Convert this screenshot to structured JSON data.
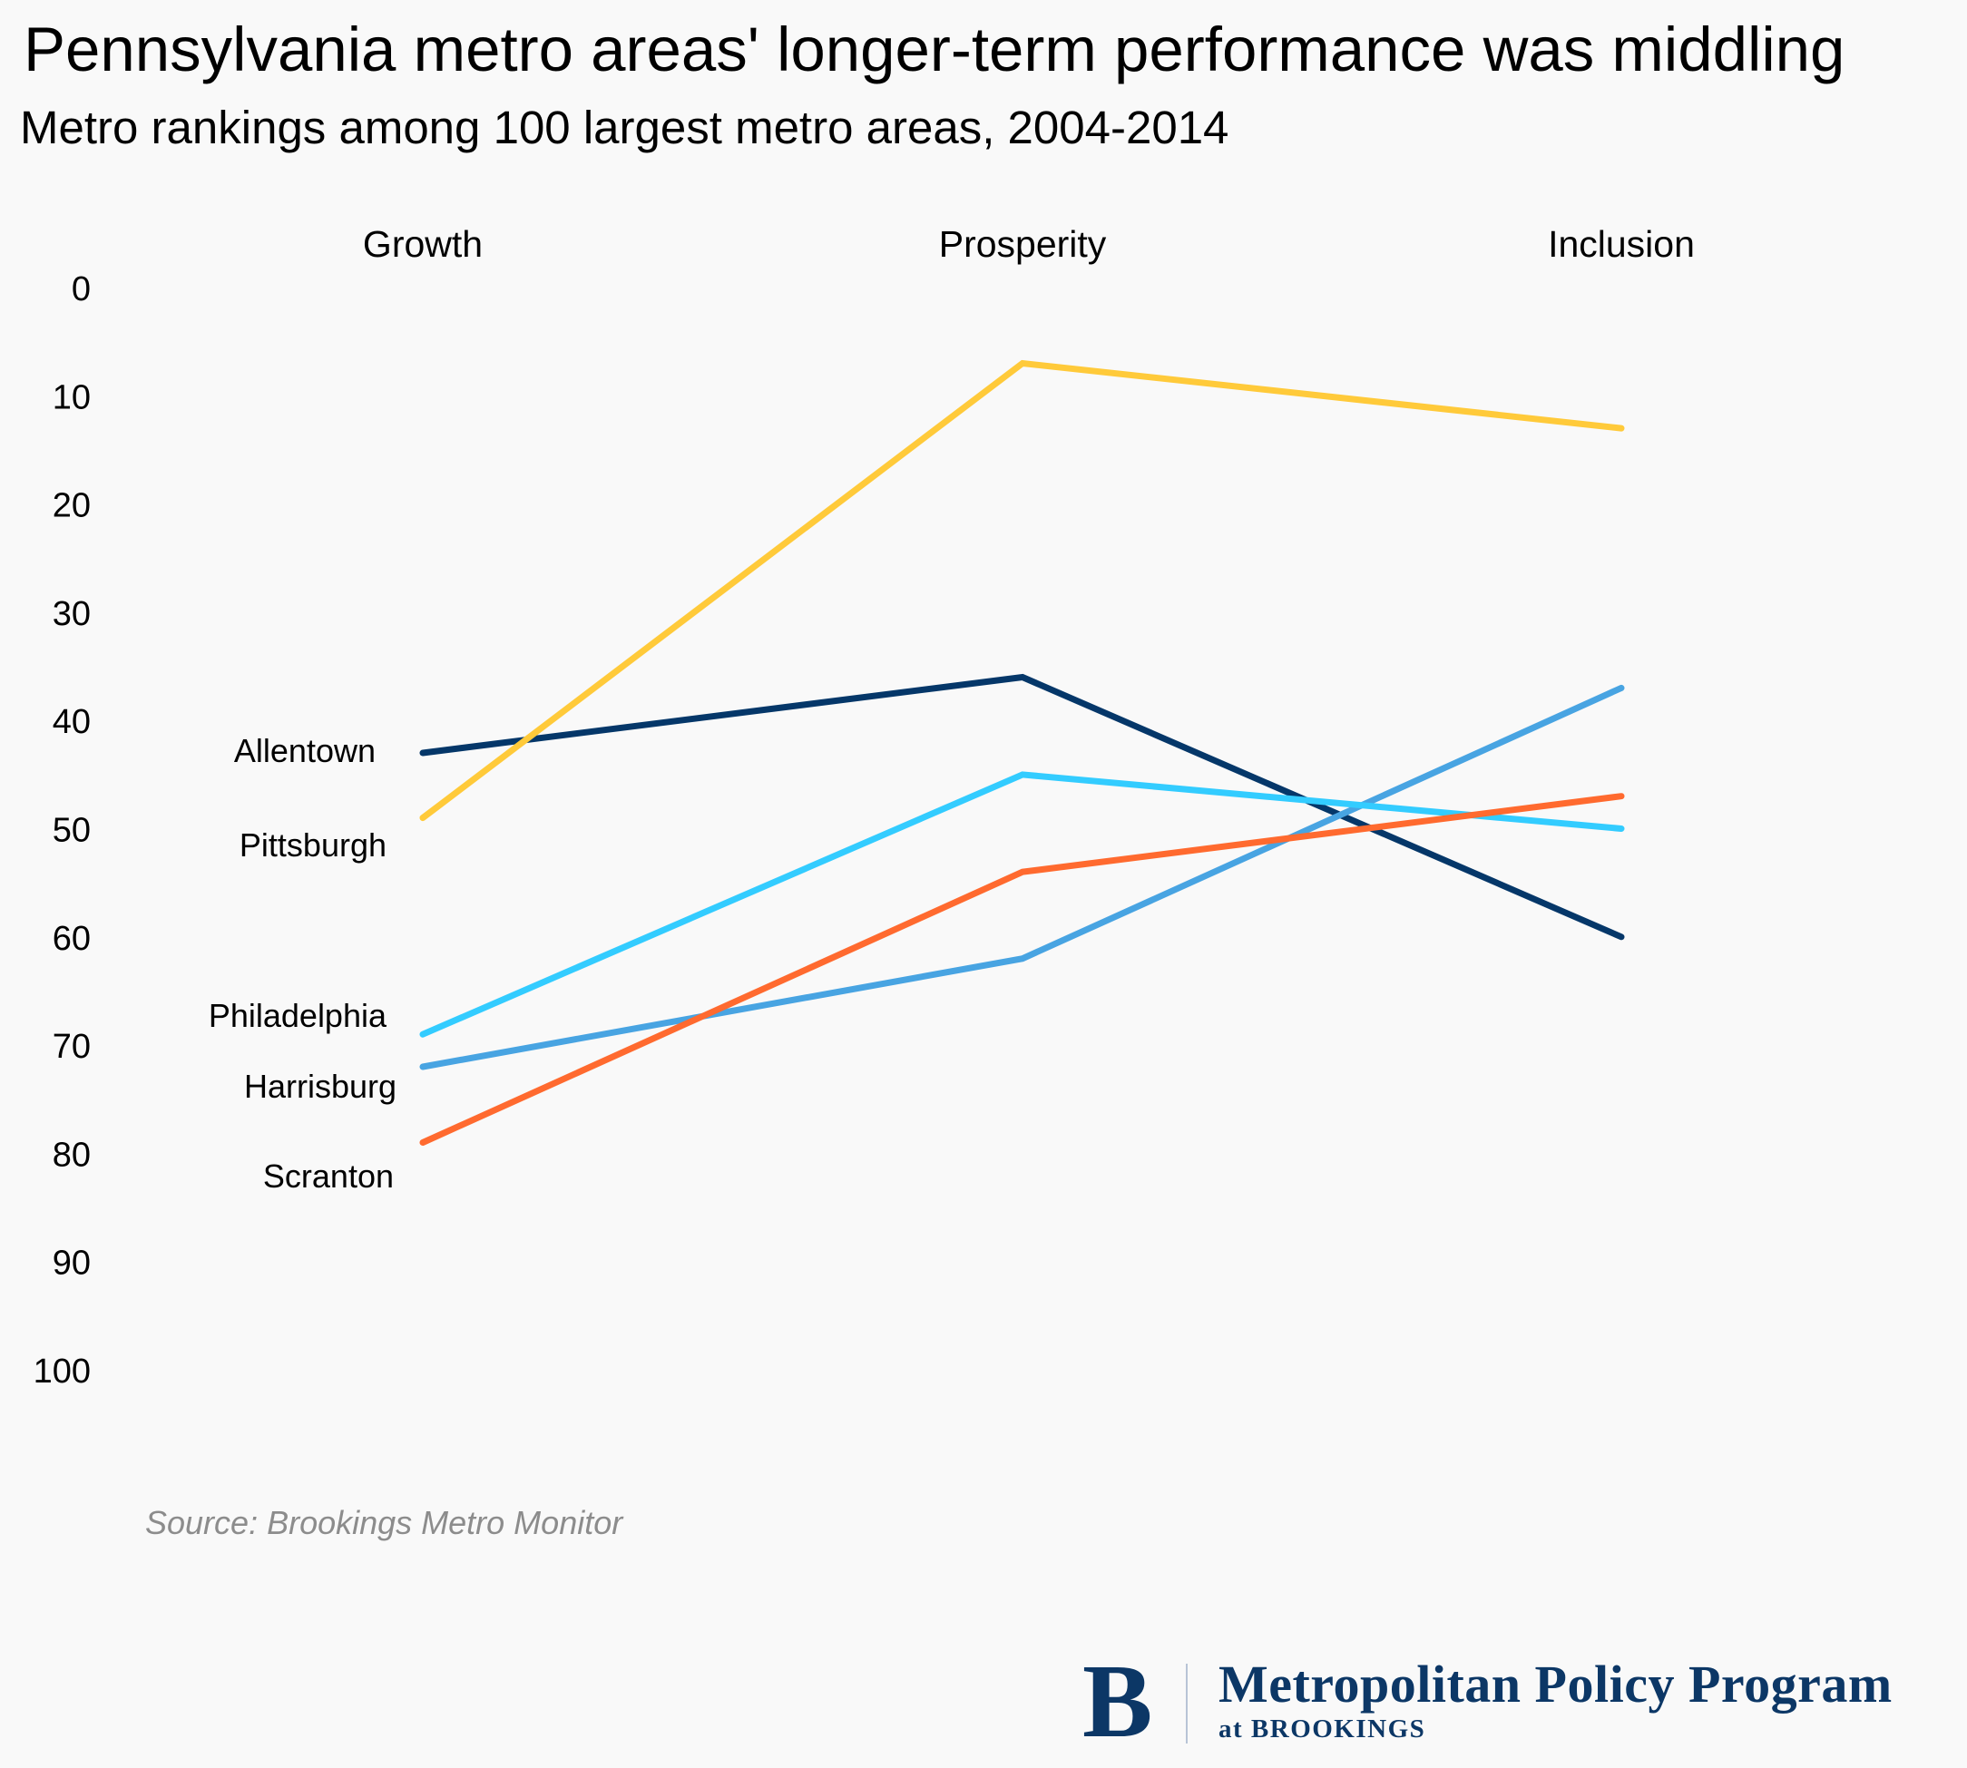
{
  "header": {
    "title": "Pennsylvania metro areas' longer-term performance was middling",
    "subtitle": "Metro rankings among 100 largest metro areas, 2004-2014"
  },
  "footer": {
    "source": "Source: Brookings Metro Monitor",
    "logo": {
      "mark": "B",
      "name": "Metropolitan Policy Program",
      "sub": "at BROOKINGS",
      "color": "#0c3766"
    }
  },
  "chart_data": {
    "type": "line",
    "title": "Pennsylvania metro areas' longer-term performance was middling",
    "subtitle": "Metro rankings among 100 largest metro areas, 2004-2014",
    "categories": [
      "Growth",
      "Prosperity",
      "Inclusion"
    ],
    "xlabel": "",
    "ylabel": "",
    "ylim": [
      0,
      100
    ],
    "y_inverted": true,
    "y_ticks": [
      "0",
      "10",
      "20",
      "30",
      "40",
      "50",
      "60",
      "70",
      "80",
      "90",
      "100"
    ],
    "grid": false,
    "legend": "direct labels at left of Growth",
    "series": [
      {
        "name": "Allentown",
        "color": "#053769",
        "values": [
          43,
          36,
          60
        ]
      },
      {
        "name": "Harrisburg",
        "color": "#48a4e2",
        "values": [
          72,
          62,
          37
        ]
      },
      {
        "name": "Philadelphia",
        "color": "#33ccff",
        "values": [
          69,
          45,
          50
        ]
      },
      {
        "name": "Scranton",
        "color": "#ff6a2f",
        "values": [
          79,
          54,
          47
        ]
      },
      {
        "name": "Pittsburgh",
        "color": "#ffca3a",
        "values": [
          49,
          7,
          13
        ]
      }
    ],
    "label_order_top_to_bottom": [
      "Allentown",
      "Pittsburgh",
      "Philadelphia",
      "Harrisburg",
      "Scranton"
    ],
    "source": "Source: Brookings Metro Monitor"
  }
}
